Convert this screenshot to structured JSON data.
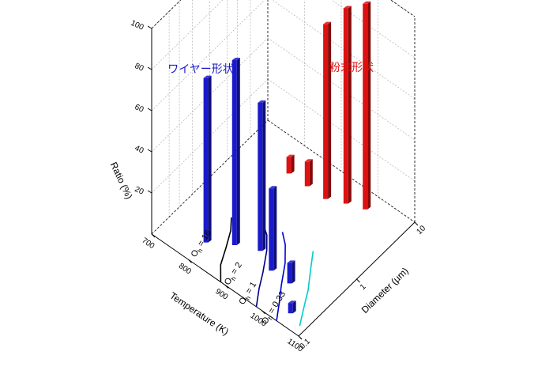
{
  "chart_data": {
    "type": "bar3d",
    "axes": {
      "x": {
        "label": "Temperature (K)",
        "ticks": [
          "700",
          "800",
          "900",
          "1000",
          "1100"
        ],
        "range": [
          700,
          1100
        ]
      },
      "y": {
        "label": "Diameter (μm)",
        "ticks": [
          "0.1",
          "1",
          "10"
        ],
        "range": [
          0.1,
          10
        ],
        "scale": "log"
      },
      "z": {
        "label": "Ratio (%)",
        "ticks": [
          "20",
          "40",
          "60",
          "80",
          "100"
        ],
        "range": [
          0,
          100
        ]
      }
    },
    "grid": true,
    "region_labels": [
      {
        "text": "ワイヤー形状",
        "color": "#1a1acc"
      },
      {
        "text": "粉末形状",
        "color": "#dd1111"
      }
    ],
    "contours": [
      {
        "label": "O_h = 16",
        "color": "#000000"
      },
      {
        "label": "O_h = 2",
        "color": "#000080"
      },
      {
        "label": "O_h = 1",
        "color": "#0000cc"
      },
      {
        "label": "O_h = 0.33",
        "color": "#00cccc"
      }
    ],
    "series": [
      {
        "color": "#1a1acc",
        "points": [
          {
            "temperature": 800,
            "diameter": 0.2,
            "ratio": 80
          },
          {
            "temperature": 850,
            "diameter": 0.3,
            "ratio": 90
          },
          {
            "temperature": 900,
            "diameter": 0.4,
            "ratio": 72
          },
          {
            "temperature": 950,
            "diameter": 0.3,
            "ratio": 40
          },
          {
            "temperature": 1000,
            "diameter": 0.3,
            "ratio": 10
          },
          {
            "temperature": 1050,
            "diameter": 0.15,
            "ratio": 5
          }
        ]
      },
      {
        "color": "#dd1111",
        "points": [
          {
            "temperature": 820,
            "diameter": 4,
            "ratio": 8
          },
          {
            "temperature": 870,
            "diameter": 4,
            "ratio": 12
          },
          {
            "temperature": 920,
            "diameter": 4,
            "ratio": 85
          },
          {
            "temperature": 960,
            "diameter": 5,
            "ratio": 95
          },
          {
            "temperature": 1000,
            "diameter": 6,
            "ratio": 100
          }
        ]
      }
    ]
  }
}
